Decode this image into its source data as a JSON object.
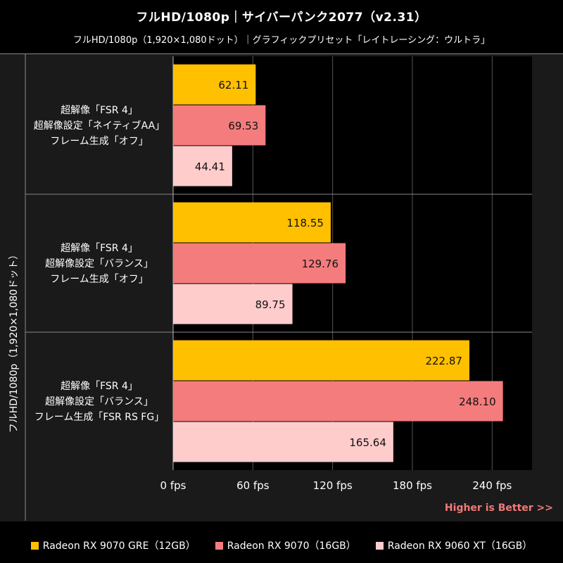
{
  "title": "フルHD/1080p｜サイバーパンク2077（v2.31）",
  "subtitle": "フルHD/1080p（1,920×1,080ドット）｜グラフィックプリセット「レイトレーシング：ウルトラ」",
  "y_axis_label": "フルHD/1080p（1,920×1,080ドット）",
  "higher_is_better": "Higher is Better >>",
  "chart_data": {
    "type": "bar",
    "orientation": "horizontal",
    "categories": [
      [
        "超解像「FSR 4」",
        "超解像設定「ネイティブAA」",
        "フレーム生成「オフ」"
      ],
      [
        "超解像「FSR 4」",
        "超解像設定「バランス」",
        "フレーム生成「オフ」"
      ],
      [
        "超解像「FSR 4」",
        "超解像設定「バランス」",
        "フレーム生成「FSR RS FG」"
      ]
    ],
    "series": [
      {
        "name": "Radeon RX 9070 GRE（12GB）",
        "color": "#FFC000",
        "values": [
          62.11,
          118.55,
          222.87
        ]
      },
      {
        "name": "Radeon RX 9070（16GB）",
        "color": "#F47C7C",
        "values": [
          69.53,
          129.76,
          248.1
        ]
      },
      {
        "name": "Radeon RX 9060 XT（16GB）",
        "color": "#FFCCCC",
        "values": [
          44.41,
          89.75,
          165.64
        ]
      }
    ],
    "x_ticks": [
      0,
      60,
      120,
      180,
      240
    ],
    "x_tick_labels": [
      "0 fps",
      "60 fps",
      "120 fps",
      "180 fps",
      "240 fps"
    ],
    "xlim": [
      0,
      270
    ],
    "value_format_decimals": 2,
    "grid": true,
    "legend_position": "bottom"
  }
}
